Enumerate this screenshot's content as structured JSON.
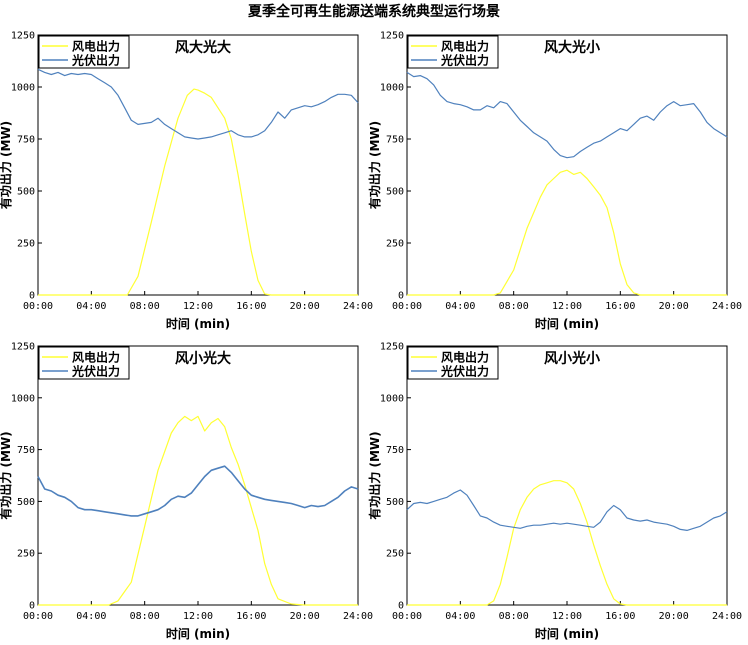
{
  "title": "夏季全可再生能源送端系统典型运行场景",
  "colors": {
    "wind": "#ffff33",
    "pv": "#4f81bd"
  },
  "chart_data": [
    {
      "type": "line",
      "title": "风大光大",
      "xlabel": "时间 (min)",
      "ylabel": "有功出力 (MW)",
      "xlim": [
        0,
        24
      ],
      "ylim": [
        0,
        1250
      ],
      "xticks": [
        "00:00",
        "04:00",
        "08:00",
        "12:00",
        "16:00",
        "20:00",
        "24:00"
      ],
      "yticks": [
        "0",
        "250",
        "500",
        "750",
        "1000",
        "1250"
      ],
      "legend": "top-left",
      "series": [
        {
          "name": "风电出力",
          "x": [
            0,
            6,
            6.7,
            7.5,
            8.5,
            9.5,
            10.5,
            11.2,
            11.7,
            12,
            12.5,
            13,
            13.5,
            14,
            14.5,
            15,
            15.5,
            16,
            16.5,
            17,
            17.5,
            24
          ],
          "values": [
            0,
            0,
            0,
            90,
            350,
            620,
            850,
            960,
            990,
            985,
            970,
            950,
            900,
            850,
            750,
            580,
            390,
            210,
            70,
            5,
            0,
            0
          ]
        },
        {
          "name": "光伏出力",
          "x": [
            0,
            0.5,
            1,
            1.5,
            2,
            2.5,
            3,
            3.5,
            4,
            4.5,
            5,
            5.5,
            6,
            6.5,
            7,
            7.5,
            8,
            8.5,
            9,
            9.5,
            10,
            10.5,
            11,
            11.5,
            12,
            12.5,
            13,
            13.5,
            14,
            14.5,
            15,
            15.5,
            16,
            16.5,
            17,
            17.5,
            18,
            18.5,
            19,
            19.5,
            20,
            20.5,
            21,
            21.5,
            22,
            22.5,
            23,
            23.5,
            24
          ],
          "values": [
            1085,
            1070,
            1060,
            1070,
            1055,
            1065,
            1060,
            1065,
            1060,
            1040,
            1020,
            1000,
            960,
            900,
            840,
            820,
            825,
            830,
            850,
            820,
            800,
            780,
            760,
            755,
            750,
            755,
            760,
            770,
            780,
            790,
            770,
            760,
            760,
            770,
            790,
            830,
            880,
            850,
            890,
            900,
            910,
            905,
            915,
            930,
            950,
            965,
            965,
            960,
            925
          ]
        }
      ]
    },
    {
      "type": "line",
      "title": "风大光小",
      "xlabel": "时间 (min)",
      "ylabel": "有功出力 (MW)",
      "xlim": [
        0,
        24
      ],
      "ylim": [
        0,
        1250
      ],
      "xticks": [
        "00:00",
        "04:00",
        "08:00",
        "12:00",
        "16:00",
        "20:00",
        "24:00"
      ],
      "yticks": [
        "0",
        "250",
        "500",
        "750",
        "1000",
        "1250"
      ],
      "legend": "top-left",
      "series": [
        {
          "name": "风电出力",
          "x": [
            0,
            6.5,
            7,
            8,
            9,
            10,
            10.5,
            11,
            11.5,
            12,
            12.5,
            13,
            13.5,
            14,
            14.5,
            15,
            15.5,
            16,
            16.5,
            17,
            17.5,
            24
          ],
          "values": [
            0,
            0,
            10,
            120,
            320,
            470,
            530,
            560,
            590,
            600,
            580,
            590,
            560,
            520,
            480,
            420,
            300,
            150,
            50,
            10,
            0,
            0
          ]
        },
        {
          "name": "光伏出力",
          "x": [
            0,
            0.5,
            1,
            1.5,
            2,
            2.5,
            3,
            3.5,
            4,
            4.5,
            5,
            5.5,
            6,
            6.5,
            7,
            7.5,
            8,
            8.5,
            9,
            9.5,
            10,
            10.5,
            11,
            11.5,
            12,
            12.5,
            13,
            13.5,
            14,
            14.5,
            15,
            15.5,
            16,
            16.5,
            17,
            17.5,
            18,
            18.5,
            19,
            19.5,
            20,
            20.5,
            21,
            21.5,
            22,
            22.5,
            23,
            23.5,
            24
          ],
          "values": [
            1070,
            1050,
            1055,
            1040,
            1010,
            960,
            930,
            920,
            915,
            905,
            890,
            890,
            910,
            900,
            930,
            920,
            880,
            840,
            810,
            780,
            760,
            740,
            700,
            670,
            660,
            665,
            690,
            710,
            730,
            740,
            760,
            780,
            800,
            790,
            820,
            850,
            860,
            840,
            880,
            910,
            930,
            910,
            915,
            920,
            880,
            830,
            800,
            780,
            760
          ]
        }
      ]
    },
    {
      "type": "line",
      "title": "风小光大",
      "xlabel": "时间 (min)",
      "ylabel": "有功出力 (MW)",
      "xlim": [
        0,
        24
      ],
      "ylim": [
        0,
        1250
      ],
      "xticks": [
        "00:00",
        "04:00",
        "08:00",
        "12:00",
        "16:00",
        "20:00",
        "24:00"
      ],
      "yticks": [
        "0",
        "250",
        "500",
        "750",
        "1000",
        "1250"
      ],
      "legend": "top-left",
      "series": [
        {
          "name": "风电出力",
          "x": [
            0,
            5.3,
            6,
            7,
            8,
            9,
            10,
            10.5,
            11,
            11.5,
            12,
            12.5,
            13,
            13.5,
            14,
            14.5,
            15,
            15.5,
            16,
            16.5,
            17,
            17.5,
            18,
            19,
            20,
            24
          ],
          "values": [
            0,
            0,
            20,
            110,
            380,
            650,
            830,
            880,
            910,
            890,
            910,
            840,
            880,
            900,
            860,
            760,
            680,
            580,
            470,
            360,
            200,
            100,
            30,
            5,
            0,
            0
          ]
        },
        {
          "name": "光伏出力",
          "x": [
            0,
            0.5,
            1,
            1.5,
            2,
            2.5,
            3,
            3.5,
            4,
            4.5,
            5,
            5.5,
            6,
            6.5,
            7,
            7.5,
            8,
            8.5,
            9,
            9.5,
            10,
            10.5,
            11,
            11.5,
            12,
            12.5,
            13,
            13.5,
            14,
            14.5,
            15,
            15.5,
            16,
            16.5,
            17,
            17.5,
            18,
            18.5,
            19,
            19.5,
            20,
            20.5,
            21,
            21.5,
            22,
            22.5,
            23,
            23.5,
            24
          ],
          "values": [
            620,
            560,
            550,
            530,
            520,
            500,
            470,
            460,
            460,
            455,
            450,
            445,
            440,
            435,
            430,
            430,
            440,
            450,
            460,
            480,
            510,
            525,
            520,
            540,
            580,
            620,
            650,
            660,
            670,
            640,
            600,
            560,
            530,
            520,
            510,
            505,
            500,
            495,
            490,
            480,
            470,
            480,
            475,
            480,
            500,
            520,
            550,
            570,
            560
          ]
        }
      ]
    },
    {
      "type": "line",
      "title": "风小光小",
      "xlabel": "时间 (min)",
      "ylabel": "有功出力 (MW)",
      "xlim": [
        0,
        24
      ],
      "ylim": [
        0,
        1250
      ],
      "xticks": [
        "00:00",
        "04:00",
        "08:00",
        "12:00",
        "16:00",
        "20:00",
        "24:00"
      ],
      "yticks": [
        "0",
        "250",
        "500",
        "750",
        "1000",
        "1250"
      ],
      "legend": "top-left",
      "series": [
        {
          "name": "风电出力",
          "x": [
            0,
            6,
            6.5,
            7,
            7.5,
            8,
            8.5,
            9,
            9.5,
            10,
            10.5,
            11,
            11.5,
            12,
            12.5,
            13,
            13.5,
            14,
            14.5,
            15,
            15.5,
            16,
            16.5,
            24
          ],
          "values": [
            0,
            0,
            20,
            100,
            230,
            370,
            460,
            520,
            560,
            580,
            590,
            600,
            600,
            590,
            560,
            490,
            400,
            290,
            190,
            100,
            30,
            5,
            0,
            0
          ]
        },
        {
          "name": "光伏出力",
          "x": [
            0,
            0.5,
            1,
            1.5,
            2,
            2.5,
            3,
            3.5,
            4,
            4.5,
            5,
            5.5,
            6,
            6.5,
            7,
            7.5,
            8,
            8.5,
            9,
            9.5,
            10,
            10.5,
            11,
            11.5,
            12,
            12.5,
            13,
            13.5,
            14,
            14.5,
            15,
            15.5,
            16,
            16.5,
            17,
            17.5,
            18,
            18.5,
            19,
            19.5,
            20,
            20.5,
            21,
            21.5,
            22,
            22.5,
            23,
            23.5,
            24
          ],
          "values": [
            460,
            490,
            495,
            490,
            500,
            510,
            520,
            540,
            555,
            530,
            480,
            430,
            420,
            400,
            385,
            380,
            375,
            370,
            380,
            385,
            385,
            390,
            395,
            390,
            395,
            390,
            385,
            380,
            375,
            400,
            450,
            480,
            460,
            420,
            410,
            405,
            410,
            400,
            395,
            390,
            380,
            365,
            360,
            370,
            380,
            400,
            420,
            430,
            450
          ]
        }
      ]
    }
  ]
}
